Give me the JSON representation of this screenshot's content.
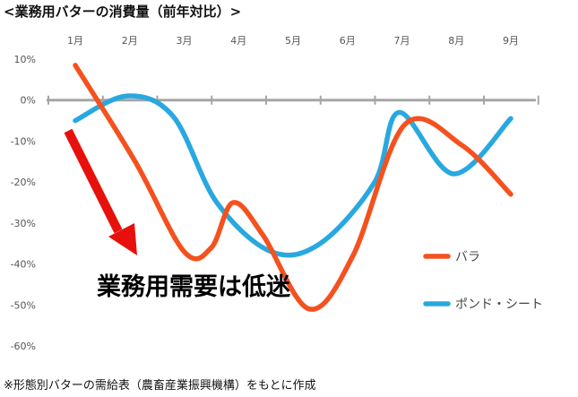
{
  "chart_data": {
    "type": "line",
    "title": "<業務用バターの消費量（前年対比）>",
    "categories": [
      "1月",
      "2月",
      "3月",
      "4月",
      "5月",
      "6月",
      "7月",
      "8月",
      "9月"
    ],
    "ylim": [
      -60,
      10
    ],
    "y_ticks": [
      10,
      0,
      -10,
      -20,
      -30,
      -40,
      -50,
      -60
    ],
    "y_tick_labels": [
      "10%",
      "0%",
      "-10%",
      "-20%",
      "-30%",
      "-40%",
      "-50%",
      "-60%"
    ],
    "grid": false,
    "legend_position": "right",
    "series": [
      {
        "name": "バラ",
        "color": "#f4511e",
        "smooth": true,
        "x": [
          1,
          2.1,
          3,
          3.5,
          3.9,
          4.45,
          5.3,
          6.1,
          7.05,
          8.1,
          9
        ],
        "values": [
          8.5,
          -15,
          -37,
          -36,
          -25,
          -33,
          -51,
          -38,
          -6,
          -11,
          -23
        ]
      },
      {
        "name": "ポンド・シート",
        "color": "#29a8e0",
        "smooth": true,
        "x": [
          1,
          1.95,
          2.8,
          3.6,
          4.6,
          5.5,
          6.5,
          6.95,
          7.95,
          9
        ],
        "values": [
          -5,
          1,
          -4,
          -25,
          -37,
          -35,
          -20,
          -3,
          -18,
          -4.5
        ]
      }
    ],
    "annotation": "業務用需要は低迷",
    "arrow_color": "#e8100c"
  },
  "footer": {
    "note": "※形態別バターの需給表（農畜産業振興機構）をもとに作成"
  }
}
